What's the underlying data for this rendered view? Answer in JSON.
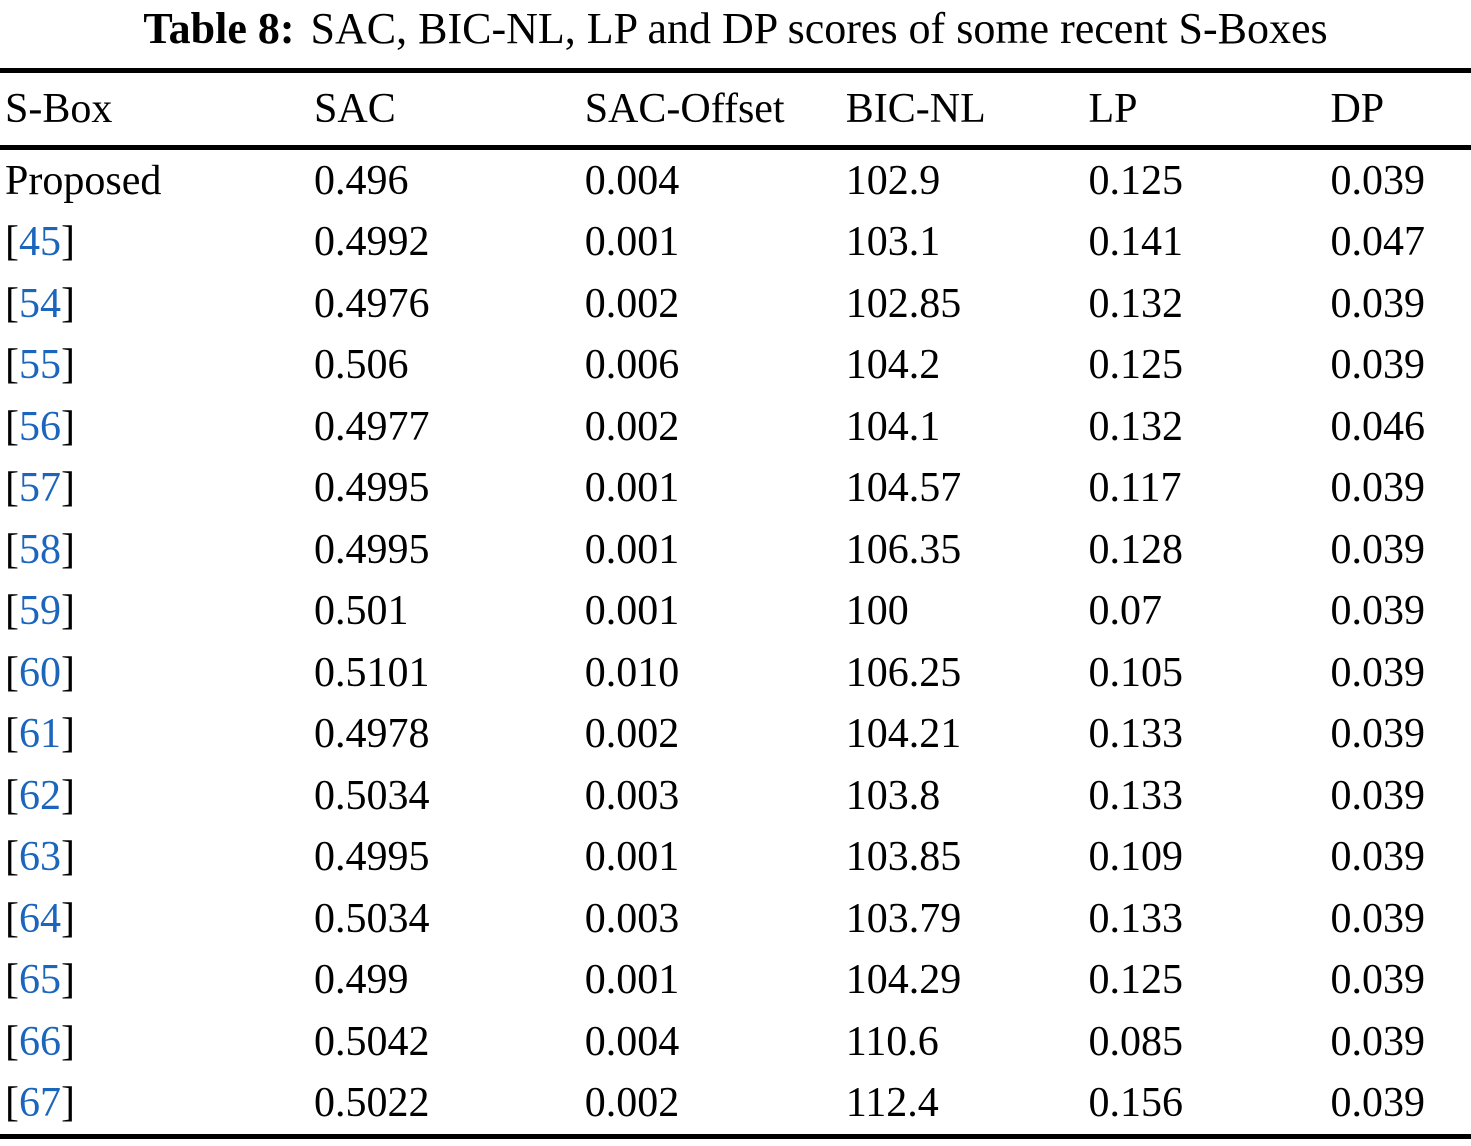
{
  "caption": {
    "label": "Table 8:",
    "text": "SAC, BIC-NL, LP and DP scores of some recent S-Boxes"
  },
  "table": {
    "columns": [
      "S-Box",
      "SAC",
      "SAC-Offset",
      "BIC-NL",
      "LP",
      "DP"
    ],
    "rows": [
      {
        "sbox": "Proposed",
        "citation": false,
        "values": [
          "0.496",
          "0.004",
          "102.9",
          "0.125",
          "0.039"
        ]
      },
      {
        "sbox": "45",
        "citation": true,
        "values": [
          "0.4992",
          "0.001",
          "103.1",
          "0.141",
          "0.047"
        ]
      },
      {
        "sbox": "54",
        "citation": true,
        "values": [
          "0.4976",
          "0.002",
          "102.85",
          "0.132",
          "0.039"
        ]
      },
      {
        "sbox": "55",
        "citation": true,
        "values": [
          "0.506",
          "0.006",
          "104.2",
          "0.125",
          "0.039"
        ]
      },
      {
        "sbox": "56",
        "citation": true,
        "values": [
          "0.4977",
          "0.002",
          "104.1",
          "0.132",
          "0.046"
        ]
      },
      {
        "sbox": "57",
        "citation": true,
        "values": [
          "0.4995",
          "0.001",
          "104.57",
          "0.117",
          "0.039"
        ]
      },
      {
        "sbox": "58",
        "citation": true,
        "values": [
          "0.4995",
          "0.001",
          "106.35",
          "0.128",
          "0.039"
        ]
      },
      {
        "sbox": "59",
        "citation": true,
        "values": [
          "0.501",
          "0.001",
          "100",
          "0.07",
          "0.039"
        ]
      },
      {
        "sbox": "60",
        "citation": true,
        "values": [
          "0.5101",
          "0.010",
          "106.25",
          "0.105",
          "0.039"
        ]
      },
      {
        "sbox": "61",
        "citation": true,
        "values": [
          "0.4978",
          "0.002",
          "104.21",
          "0.133",
          "0.039"
        ]
      },
      {
        "sbox": "62",
        "citation": true,
        "values": [
          "0.5034",
          "0.003",
          "103.8",
          "0.133",
          "0.039"
        ]
      },
      {
        "sbox": "63",
        "citation": true,
        "values": [
          "0.4995",
          "0.001",
          "103.85",
          "0.109",
          "0.039"
        ]
      },
      {
        "sbox": "64",
        "citation": true,
        "values": [
          "0.5034",
          "0.003",
          "103.79",
          "0.133",
          "0.039"
        ]
      },
      {
        "sbox": "65",
        "citation": true,
        "values": [
          "0.499",
          "0.001",
          "104.29",
          "0.125",
          "0.039"
        ]
      },
      {
        "sbox": "66",
        "citation": true,
        "values": [
          "0.5042",
          "0.004",
          "110.6",
          "0.085",
          "0.039"
        ]
      },
      {
        "sbox": "67",
        "citation": true,
        "values": [
          "0.5022",
          "0.002",
          "112.4",
          "0.156",
          "0.039"
        ]
      }
    ]
  },
  "colors": {
    "citation_blue": "#1b65bd",
    "rule_black": "#000000"
  }
}
